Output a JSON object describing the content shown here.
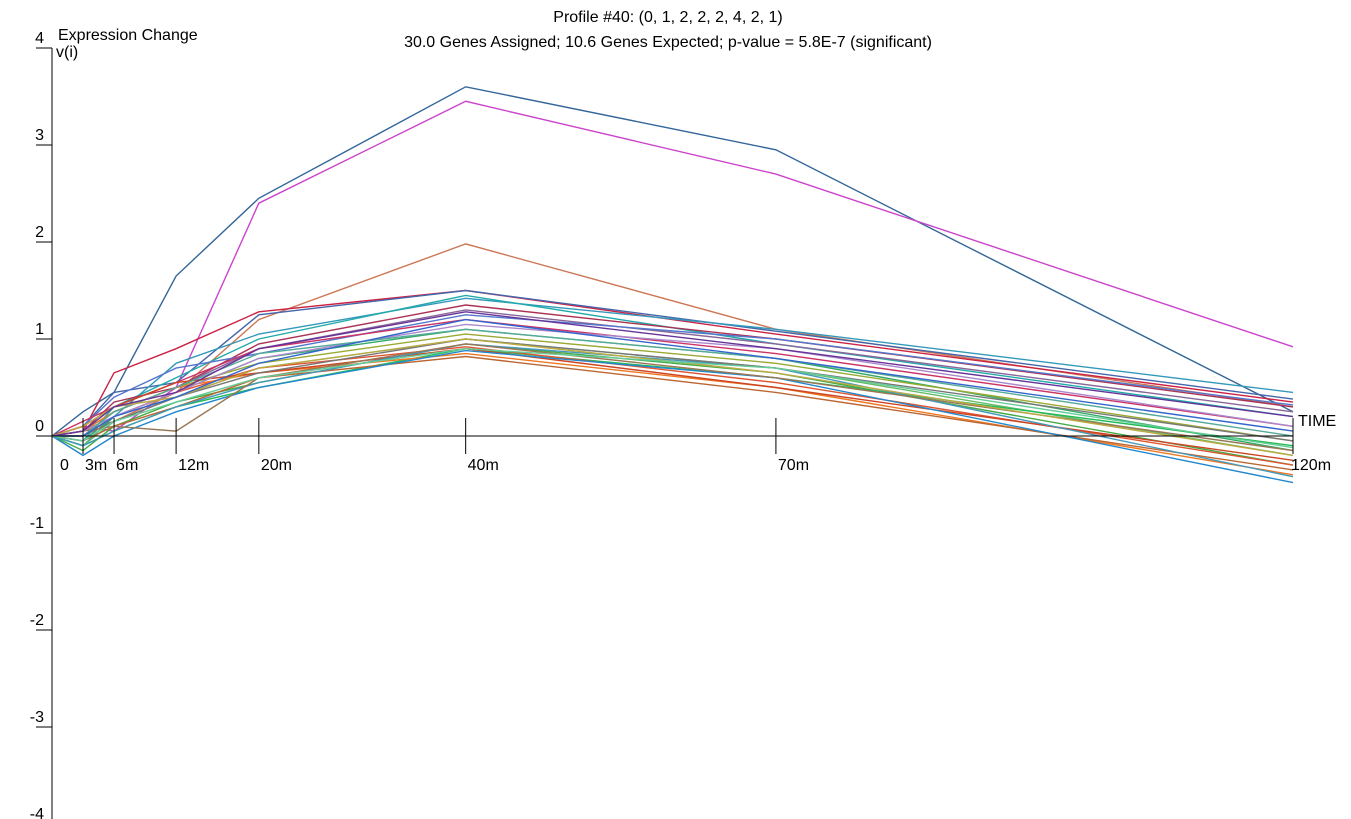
{
  "chart_data": {
    "type": "line",
    "title": "Profile #40: (0, 1, 2, 2, 2, 4, 2, 1)",
    "subtitle": "30.0 Genes Assigned; 10.6 Genes Expected; p-value = 5.8E-7 (significant)",
    "ylabel": "Expression Change",
    "ylabel_unit": "v(i)",
    "xlabel": "TIME",
    "ylim": [
      -4,
      4
    ],
    "y_ticks": [
      "4",
      "3",
      "2",
      "1",
      "0",
      "-1",
      "-2",
      "-3",
      "-4"
    ],
    "x_minutes": [
      0,
      3,
      6,
      12,
      20,
      40,
      70,
      120
    ],
    "x_ticks": [
      "0",
      "3m",
      "6m",
      "12m",
      "20m",
      "40m",
      "70m",
      "120m"
    ],
    "grid": false,
    "series": [
      {
        "color": "#336699",
        "values": [
          0,
          0.25,
          0.45,
          1.65,
          2.45,
          3.6,
          2.95,
          0.25
        ]
      },
      {
        "color": "#cc44cc",
        "values": [
          0,
          0.1,
          0.05,
          0.5,
          2.4,
          3.45,
          2.7,
          0.92
        ]
      },
      {
        "color": "#cc7755",
        "values": [
          0,
          0.05,
          0.15,
          0.45,
          1.2,
          1.98,
          1.1,
          0.3
        ]
      },
      {
        "color": "#cc2244",
        "values": [
          0,
          0.05,
          0.65,
          0.9,
          1.28,
          1.5,
          1.05,
          0.35
        ]
      },
      {
        "color": "#4466aa",
        "values": [
          0,
          0.1,
          0.45,
          0.55,
          1.25,
          1.5,
          1.08,
          0.38
        ]
      },
      {
        "color": "#3399bb",
        "values": [
          0,
          -0.1,
          0.2,
          0.75,
          1.05,
          1.42,
          1.1,
          0.45
        ]
      },
      {
        "color": "#22aaaa",
        "values": [
          0,
          -0.05,
          0.3,
          0.6,
          1.0,
          1.45,
          0.95,
          0.2
        ]
      },
      {
        "color": "#aa3355",
        "values": [
          0,
          0.05,
          0.35,
          0.5,
          0.95,
          1.35,
          1.0,
          0.3
        ]
      },
      {
        "color": "#886699",
        "values": [
          0,
          0.0,
          0.25,
          0.5,
          0.9,
          1.3,
          0.95,
          0.25
        ]
      },
      {
        "color": "#5577cc",
        "values": [
          0,
          0.1,
          0.4,
          0.7,
          0.85,
          1.25,
          1.0,
          0.32
        ]
      },
      {
        "color": "#cc3366",
        "values": [
          0,
          0.15,
          0.3,
          0.55,
          0.9,
          1.2,
          0.85,
          0.1
        ]
      },
      {
        "color": "#33aa66",
        "values": [
          0,
          -0.05,
          0.2,
          0.45,
          0.8,
          1.1,
          0.8,
          -0.15
        ]
      },
      {
        "color": "#99aa33",
        "values": [
          0,
          0.05,
          0.25,
          0.5,
          0.75,
          1.05,
          0.75,
          -0.05
        ]
      },
      {
        "color": "#66bb66",
        "values": [
          0,
          -0.1,
          0.15,
          0.4,
          0.7,
          1.0,
          0.7,
          -0.2
        ]
      },
      {
        "color": "#44aa44",
        "values": [
          0,
          -0.15,
          0.1,
          0.35,
          0.55,
          0.95,
          0.65,
          -0.3
        ]
      },
      {
        "color": "#22bb55",
        "values": [
          0,
          -0.1,
          0.05,
          0.3,
          0.5,
          0.9,
          0.6,
          -0.1
        ]
      },
      {
        "color": "#dd5533",
        "values": [
          0,
          0.0,
          0.2,
          0.45,
          0.7,
          0.92,
          0.55,
          -0.3
        ]
      },
      {
        "color": "#ee7722",
        "values": [
          0,
          0.05,
          0.25,
          0.5,
          0.65,
          0.85,
          0.5,
          -0.4
        ]
      },
      {
        "color": "#bb6633",
        "values": [
          0,
          -0.05,
          0.1,
          0.3,
          0.6,
          0.82,
          0.45,
          -0.35
        ]
      },
      {
        "color": "#cc4422",
        "values": [
          0,
          0.1,
          0.3,
          0.55,
          0.65,
          0.9,
          0.5,
          -0.25
        ]
      },
      {
        "color": "#2288cc",
        "values": [
          0,
          -0.2,
          0.0,
          0.25,
          0.5,
          0.88,
          0.6,
          -0.48
        ]
      },
      {
        "color": "#4499bb",
        "values": [
          0,
          -0.1,
          0.05,
          0.3,
          0.55,
          0.95,
          0.7,
          -0.42
        ]
      },
      {
        "color": "#777777",
        "values": [
          0,
          0.0,
          0.15,
          0.4,
          0.65,
          1.0,
          0.7,
          -0.05
        ]
      },
      {
        "color": "#997755",
        "values": [
          0,
          0.05,
          0.1,
          0.05,
          0.6,
          0.95,
          0.6,
          -0.15
        ]
      },
      {
        "color": "#aa88cc",
        "values": [
          0,
          0.05,
          0.2,
          0.45,
          0.8,
          1.15,
          0.9,
          0.1
        ]
      },
      {
        "color": "#55aa99",
        "values": [
          0,
          0.0,
          0.25,
          0.5,
          0.85,
          1.1,
          0.8,
          0.0
        ]
      },
      {
        "color": "#bbaa44",
        "values": [
          0,
          0.1,
          0.3,
          0.4,
          0.7,
          1.0,
          0.65,
          -0.2
        ]
      },
      {
        "color": "#663399",
        "values": [
          0,
          0.05,
          0.3,
          0.45,
          0.9,
          1.28,
          0.9,
          0.2
        ]
      },
      {
        "color": "#3366cc",
        "values": [
          0,
          0.0,
          0.2,
          0.4,
          0.75,
          1.2,
          0.8,
          0.05
        ]
      },
      {
        "color": "#66cc99",
        "values": [
          0,
          -0.05,
          0.15,
          0.35,
          0.6,
          0.9,
          0.7,
          -0.12
        ]
      }
    ]
  }
}
